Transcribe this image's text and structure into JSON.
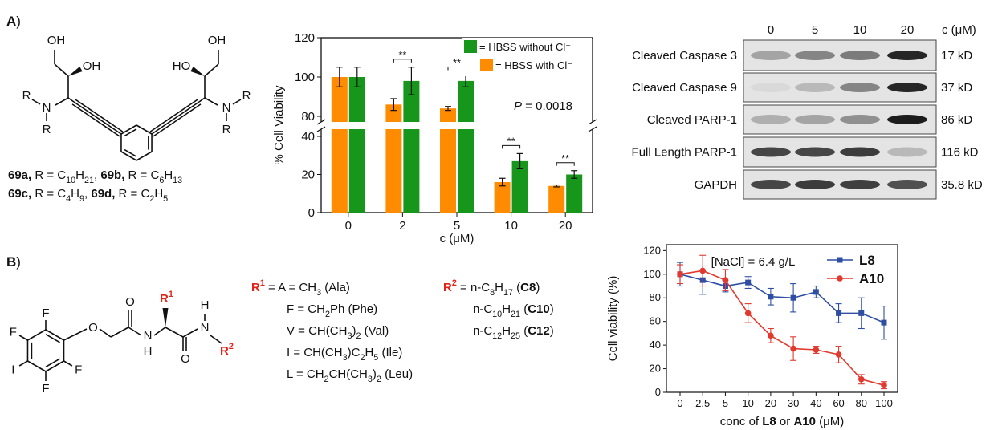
{
  "panel_a": [
    "A",
    ")"
  ],
  "panel_b": [
    "B",
    ")"
  ],
  "structure_69": {
    "atoms": [
      "OH",
      "OH",
      "HO",
      "OH",
      "N",
      "R",
      "R",
      "N",
      "R",
      "R"
    ],
    "caption": [
      [
        "69a,",
        " R = C",
        "10",
        "H",
        "21",
        ", ",
        "69b,",
        " R = C",
        "6",
        "H",
        "13"
      ],
      [
        "69c,",
        " R = C",
        "4",
        "H",
        "9",
        ", ",
        "69d,",
        " R = C",
        "2",
        "H",
        "5"
      ]
    ]
  },
  "structure_b": {
    "atoms": [
      "F",
      "F",
      "F",
      "F",
      "I",
      "O",
      "O",
      "N",
      "H",
      "O",
      "N",
      "H"
    ],
    "r1": [
      "R",
      "1"
    ],
    "r2": [
      "R",
      "2"
    ]
  },
  "substituents": {
    "r1": [
      [
        "R",
        "1",
        " = A = CH",
        "3",
        " (Ala)"
      ],
      [
        "F = CH",
        "2",
        "Ph (Phe)"
      ],
      [
        "V = CH(CH",
        "3",
        ")",
        "2",
        " (Val)"
      ],
      [
        "I = CH(CH",
        "3",
        ")C",
        "2",
        "H",
        "5",
        " (Ile)"
      ],
      [
        "L = CH",
        "2",
        "CH(CH",
        "3",
        ")",
        "2",
        " (Leu)"
      ]
    ],
    "r2": [
      [
        "R",
        "2",
        " = n-C",
        "8",
        "H",
        "17",
        " (",
        "C8",
        ")"
      ],
      [
        "n-C",
        "10",
        "H",
        "21",
        " (",
        "C10",
        ")"
      ],
      [
        "n-C",
        "12",
        "H",
        "25",
        " (",
        "C12",
        ")"
      ]
    ]
  },
  "western_blot": {
    "concentrations": [
      "0",
      "5",
      "10",
      "20"
    ],
    "unit": "c (μM)",
    "proteins": [
      "Cleaved Caspase 3",
      "Cleaved Caspase 9",
      "Cleaved PARP-1",
      "Full Length PARP-1",
      "GAPDH"
    ],
    "sizes": [
      "17 kD",
      "37 kD",
      "86 kD",
      "116 kD",
      "35.8 kD"
    ]
  },
  "chart_data": [
    {
      "type": "bar",
      "x_label": "c (μM)",
      "y_label": "% Cell Viability",
      "categories": [
        "0",
        "2",
        "5",
        "10",
        "20"
      ],
      "series": [
        {
          "name": "= HBSS with Cl⁻",
          "color": "#ff8c00",
          "values": [
            100,
            86,
            84,
            16,
            14
          ],
          "errors": [
            5,
            3,
            1,
            2,
            0.5
          ]
        },
        {
          "name": "= HBSS without Cl⁻",
          "color": "#16961a",
          "values": [
            100,
            98,
            98,
            27,
            20
          ],
          "errors": [
            5,
            7,
            3,
            4,
            2
          ]
        }
      ],
      "significance": [
        null,
        "**",
        "**",
        "**",
        "**"
      ],
      "p_value_label": [
        "P",
        " = 0.0018"
      ],
      "ylim": [
        0,
        120
      ],
      "ybreak": [
        40,
        80
      ],
      "yticks": [
        0,
        20,
        40,
        80,
        100,
        120
      ]
    },
    {
      "type": "line",
      "annotation": "[NaCl] = 6.4 g/L",
      "x_label": [
        "conc of ",
        "L8",
        " or ",
        "A10",
        " (μM)"
      ],
      "y_label": "Cell viability (%)",
      "categories": [
        "0",
        "2.5",
        "5",
        "10",
        "20",
        "30",
        "40",
        "60",
        "80",
        "100"
      ],
      "series": [
        {
          "name": "L8",
          "color": "#2e4ea3",
          "marker": "square",
          "values": [
            100,
            95,
            90,
            93,
            81,
            80,
            85,
            67,
            67,
            59
          ],
          "errors": [
            10,
            12,
            5,
            5,
            7,
            12,
            5,
            8,
            13,
            14
          ]
        },
        {
          "name": "A10",
          "color": "#e2392f",
          "marker": "circle",
          "values": [
            100,
            103,
            95,
            67,
            48,
            37,
            36,
            32,
            11,
            6
          ],
          "errors": [
            8,
            13,
            9,
            8,
            6,
            10,
            3,
            7,
            4,
            3
          ]
        }
      ],
      "ylim": [
        0,
        125
      ],
      "yticks": [
        0,
        20,
        40,
        60,
        80,
        100,
        120
      ],
      "legend": "upper right"
    }
  ]
}
